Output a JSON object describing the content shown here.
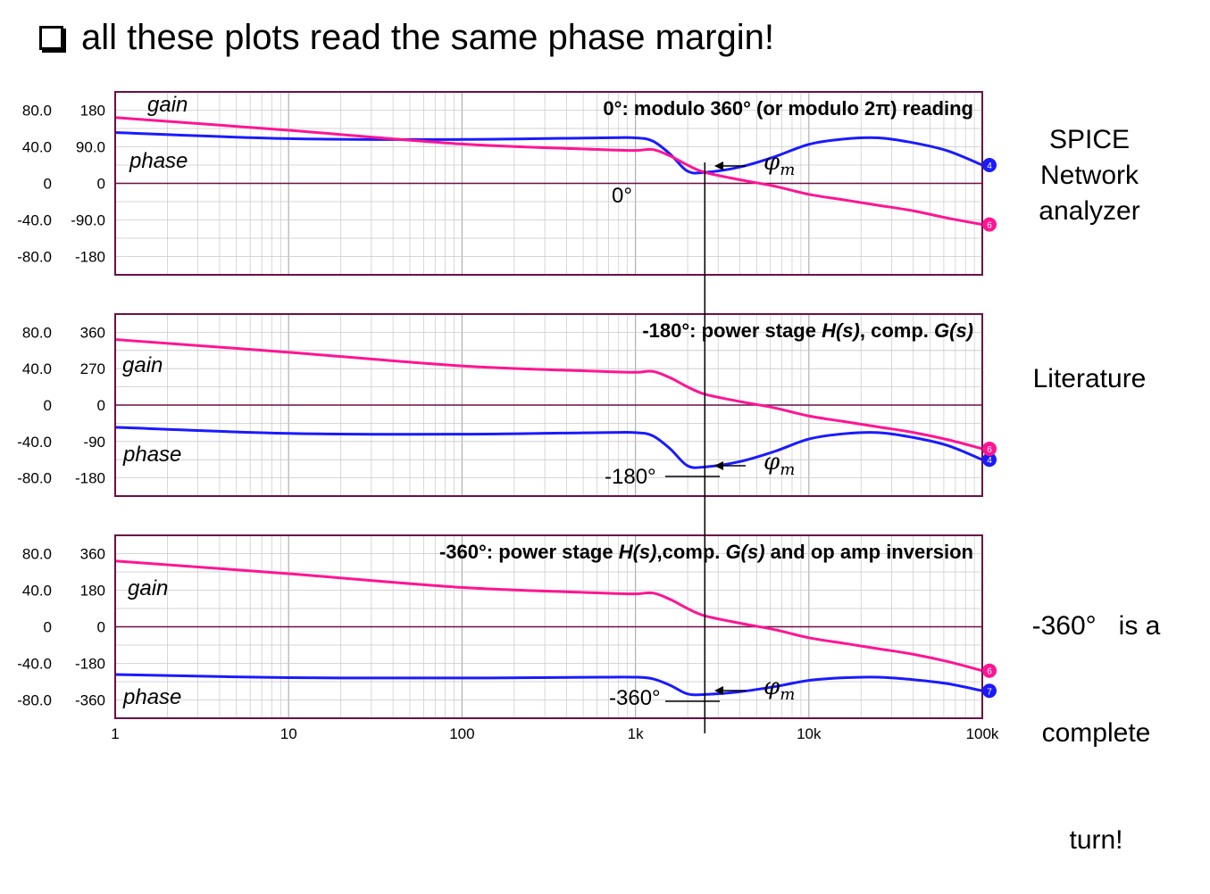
{
  "headline": "all these plots read the same phase margin!",
  "colors": {
    "gain": "#ff1493",
    "phase": "#1a1aff",
    "frame": "#6b0f45",
    "grid": "#c8c8c8"
  },
  "x_ticks": [
    "1",
    "10",
    "100",
    "1k",
    "10k",
    "100k"
  ],
  "crossover_label": "φm",
  "chart_data": [
    {
      "type": "line",
      "title": "0°: modulo 360° (or modulo 2π) reading",
      "gain_ticks": [
        "80.0",
        "40.0",
        "0",
        "-40.0",
        "-80.0"
      ],
      "phase_ticks": [
        "180",
        "90.0",
        "0",
        "-90.0",
        "-180"
      ],
      "series_labels": {
        "gain": "gain",
        "phase": "phase"
      },
      "phase_ref_label": "0°",
      "side_text": [
        "SPICE",
        "Network",
        "analyzer"
      ],
      "markers": {
        "phase": "4",
        "gain": "6"
      },
      "x_log": [
        0,
        1,
        2,
        2.8,
        3,
        3.1,
        3.2,
        3.3,
        3.4,
        3.6,
        3.8,
        4,
        4.2,
        4.4,
        4.6,
        4.8,
        5
      ],
      "gain_db": [
        72,
        58,
        43,
        37,
        36,
        37,
        30,
        20,
        12,
        4,
        -3,
        -12,
        -18,
        -24,
        -30,
        -38,
        -45
      ],
      "phase_deg": [
        125,
        110,
        108,
        112,
        112,
        104,
        72,
        30,
        27,
        40,
        65,
        96,
        109,
        112,
        100,
        80,
        45
      ],
      "ylim_gain": [
        -100,
        100
      ],
      "ylim_phase": [
        -225,
        225
      ]
    },
    {
      "type": "line",
      "title_parts": [
        "-180°: power stage ",
        "H(s)",
        ", comp. ",
        "G(s)"
      ],
      "gain_ticks": [
        "80.0",
        "40.0",
        "0",
        "-40.0",
        "-80.0"
      ],
      "phase_ticks": [
        "360",
        "270",
        "0",
        "-90",
        "-180"
      ],
      "series_labels": {
        "gain": "gain",
        "phase": "phase"
      },
      "phase_ref_label": "-180°",
      "side_text": [
        "Literature"
      ],
      "markers": {
        "phase": "4",
        "gain": "6"
      },
      "x_log": [
        0,
        1,
        2,
        2.8,
        3,
        3.1,
        3.2,
        3.3,
        3.4,
        3.6,
        3.8,
        4,
        4.2,
        4.4,
        4.6,
        4.8,
        5
      ],
      "gain_db": [
        72,
        58,
        43,
        37,
        36,
        37,
        30,
        20,
        12,
        4,
        -3,
        -12,
        -18,
        -24,
        -30,
        -38,
        -48
      ],
      "phase_deg": [
        -55,
        -70,
        -72,
        -68,
        -68,
        -76,
        -108,
        -150,
        -153,
        -140,
        -115,
        -84,
        -71,
        -68,
        -80,
        -100,
        -135
      ],
      "ylim_gain": [
        -100,
        100
      ],
      "ylim_phase": [
        -225,
        225
      ]
    },
    {
      "type": "line",
      "title_parts": [
        "-360°: power stage ",
        "H(s)",
        ",comp. ",
        "G(s)",
        " and op amp inversion"
      ],
      "gain_ticks": [
        "80.0",
        "40.0",
        "0",
        "-40.0",
        "-80.0"
      ],
      "phase_ticks": [
        "360",
        "180",
        "0",
        "-180",
        "-360"
      ],
      "series_labels": {
        "gain": "gain",
        "phase": "phase"
      },
      "phase_ref_label": "-360°",
      "side_text": [
        "-360°   is a",
        "complete",
        "turn!"
      ],
      "markers": {
        "phase": "7",
        "gain": "6"
      },
      "x_log": [
        0,
        1,
        2,
        2.8,
        3,
        3.1,
        3.2,
        3.3,
        3.4,
        3.6,
        3.8,
        4,
        4.2,
        4.4,
        4.6,
        4.8,
        5
      ],
      "gain_db": [
        72,
        58,
        43,
        37,
        36,
        37,
        30,
        20,
        12,
        4,
        -3,
        -12,
        -18,
        -24,
        -30,
        -38,
        -48
      ],
      "phase_deg": [
        -235,
        -250,
        -252,
        -248,
        -248,
        -256,
        -288,
        -330,
        -333,
        -320,
        -295,
        -264,
        -251,
        -248,
        -260,
        -280,
        -315
      ],
      "ylim_gain": [
        -100,
        100
      ],
      "ylim_phase": [
        -450,
        450
      ]
    }
  ]
}
